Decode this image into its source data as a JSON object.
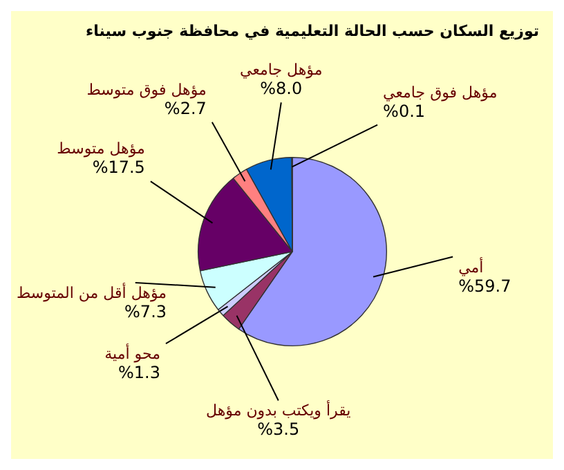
{
  "chart_data": {
    "type": "pie",
    "title": "توزيع السكان حسب الحالة التعليمية في محافظة جنوب سيناء",
    "categories": [
      "أمي",
      "يقرأ ويكتب بدون مؤهل",
      "محو أمية",
      "مؤهل أقل من المتوسط",
      "مؤهل متوسط",
      "مؤهل فوق متوسط",
      "مؤهل جامعي",
      "مؤهل فوق جامعي"
    ],
    "values": [
      59.7,
      3.5,
      1.3,
      7.3,
      17.5,
      2.7,
      8.0,
      0.1
    ],
    "value_labels": [
      "%59.7",
      "%3.5",
      "%1.3",
      "%7.3",
      "%17.5",
      "%2.7",
      "%8.0",
      "%0.1"
    ],
    "colors": [
      "#9999ff",
      "#993366",
      "#ccccff",
      "#ccffff",
      "#660066",
      "#ff8080",
      "#0066cc",
      "#ccccff"
    ],
    "legend": false
  }
}
